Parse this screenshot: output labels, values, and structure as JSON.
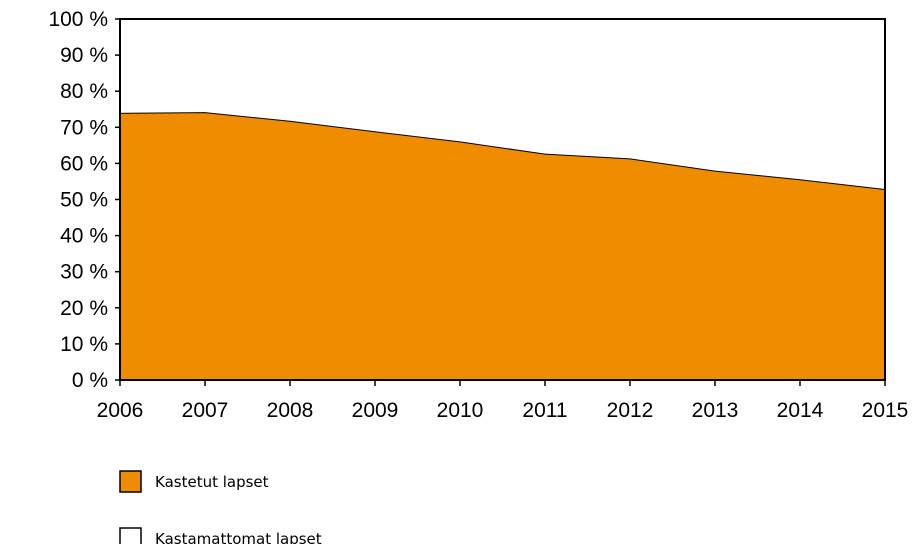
{
  "chart_data": {
    "type": "area",
    "stacked": true,
    "percent_stacked": true,
    "x": [
      "2006",
      "2007",
      "2008",
      "2009",
      "2010",
      "2011",
      "2012",
      "2013",
      "2014",
      "2015"
    ],
    "y_ticks": [
      "0 %",
      "10 %",
      "20 %",
      "30 %",
      "40 %",
      "50 %",
      "60 %",
      "70 %",
      "80 %",
      "90 %",
      "100 %"
    ],
    "ylim": [
      0,
      100
    ],
    "grid": false,
    "legend_position": "bottom-left",
    "series": [
      {
        "name": "Kastetut lapset",
        "color": "#ef8c00",
        "values": [
          74,
          74.2,
          71.8,
          68.9,
          66.1,
          62.7,
          61.4,
          58,
          55.6,
          52.9
        ]
      },
      {
        "name": "Kastamattomat lapset",
        "color": "#ffffff",
        "values": [
          26,
          25.8,
          28.2,
          31.1,
          33.9,
          37.3,
          38.6,
          42,
          44.4,
          47.1
        ]
      }
    ]
  }
}
